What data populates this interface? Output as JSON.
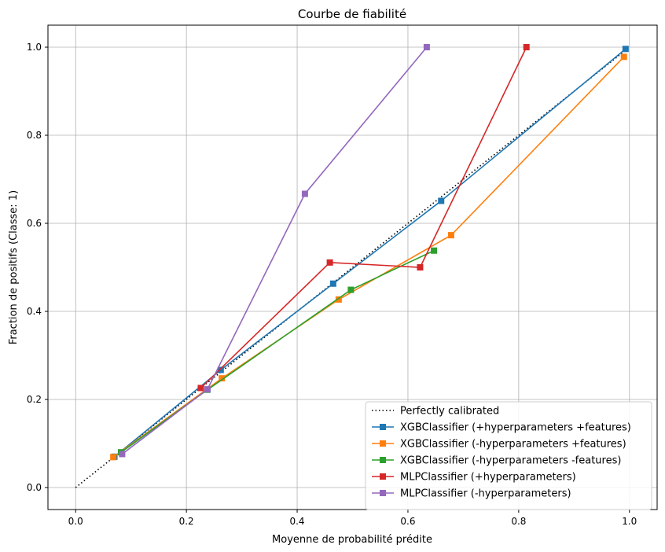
{
  "chart_data": {
    "type": "line",
    "title": "Courbe de fiabilité",
    "xlabel": "Moyenne de probabilité prédite",
    "ylabel": "Fraction de positifs (Classe: 1)",
    "xlim": [
      -0.05,
      1.05
    ],
    "ylim": [
      -0.05,
      1.05
    ],
    "xticks": [
      "0.0",
      "0.2",
      "0.4",
      "0.6",
      "0.8",
      "1.0"
    ],
    "yticks": [
      "0.0",
      "0.2",
      "0.4",
      "0.6",
      "0.8",
      "1.0"
    ],
    "grid": true,
    "legend_position": "lower-right",
    "reference": {
      "name": "Perfectly calibrated",
      "style": "dotted",
      "color": "#000000",
      "x": [
        0,
        1
      ],
      "y": [
        0,
        1
      ]
    },
    "series": [
      {
        "name": "XGBClassifier (+hyperparameters +features)",
        "color": "#1f77b4",
        "x": [
          0.07,
          0.262,
          0.465,
          0.66,
          0.993
        ],
        "y": [
          0.07,
          0.267,
          0.463,
          0.651,
          0.996
        ]
      },
      {
        "name": "XGBClassifier (-hyperparameters +features)",
        "color": "#ff7f0e",
        "x": [
          0.068,
          0.264,
          0.475,
          0.678,
          0.99
        ],
        "y": [
          0.069,
          0.248,
          0.427,
          0.573,
          0.978
        ]
      },
      {
        "name": "XGBClassifier (-hyperparameters -features)",
        "color": "#2ca02c",
        "x": [
          0.082,
          0.238,
          0.497,
          0.647
        ],
        "y": [
          0.08,
          0.222,
          0.449,
          0.538
        ]
      },
      {
        "name": "MLPClassifier (+hyperparameters)",
        "color": "#d62728",
        "x": [
          0.226,
          0.459,
          0.622,
          0.814
        ],
        "y": [
          0.226,
          0.511,
          0.5,
          1.0
        ]
      },
      {
        "name": "MLPClassifier (-hyperparameters)",
        "color": "#9467bd",
        "x": [
          0.084,
          0.238,
          0.414,
          0.634
        ],
        "y": [
          0.076,
          0.223,
          0.667,
          1.0
        ]
      }
    ]
  }
}
